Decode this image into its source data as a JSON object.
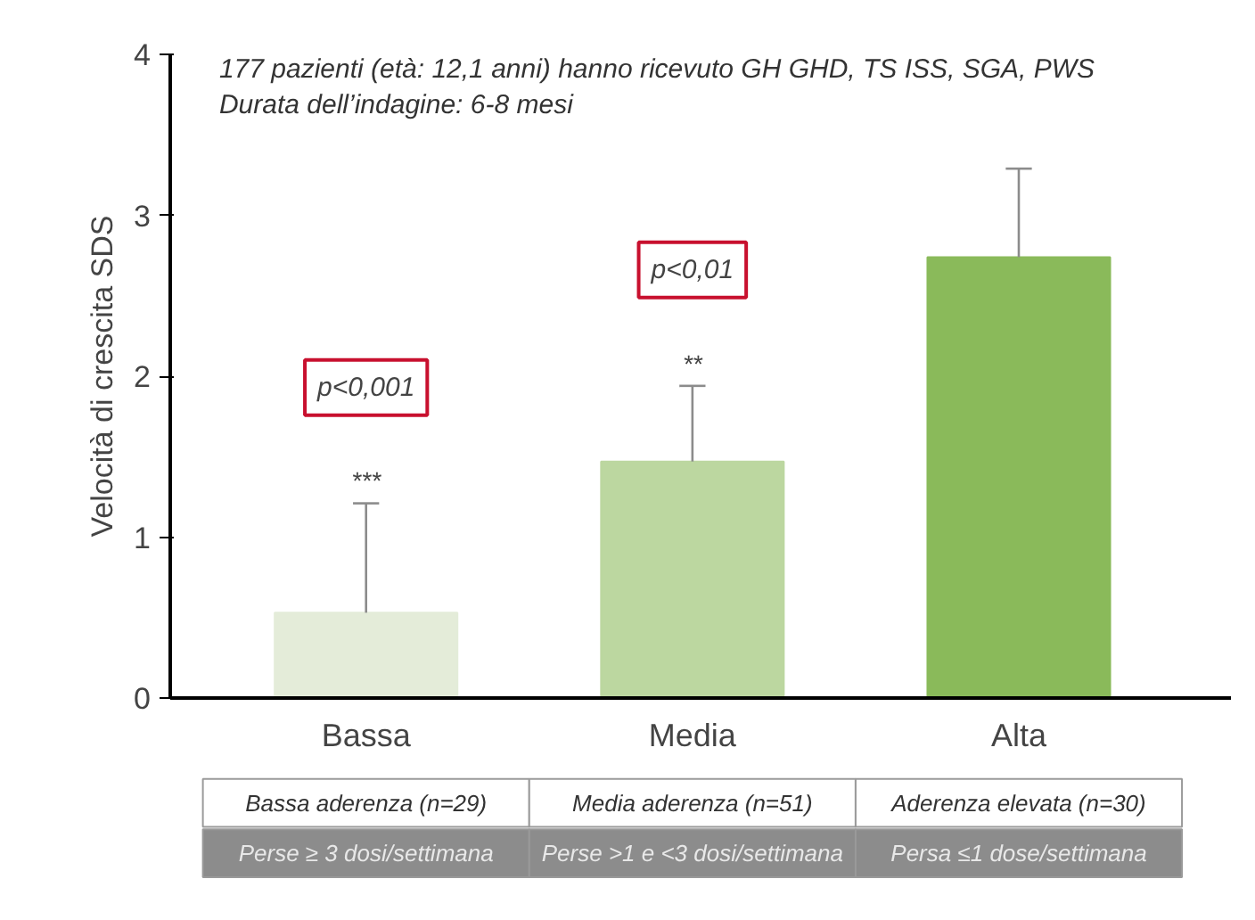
{
  "chart_data": {
    "type": "bar",
    "title": "177 pazienti (età: 12,1 anni) hanno ricevuto GH GHD, TS ISS, SGA, PWS",
    "subtitle": "Durata dell’indagine: 6-8 mesi",
    "ylabel": "Velocità di crescita SDS",
    "categories": [
      "Bassa",
      "Media",
      "Alta"
    ],
    "values": [
      0.53,
      1.47,
      2.74
    ],
    "colors": [
      "#e4ecd9",
      "#bcd7a0",
      "#8aba5a"
    ],
    "errors": [
      [
        0.53,
        1.21
      ],
      [
        1.47,
        1.94
      ],
      [
        2.74,
        3.29
      ]
    ],
    "ylim": [
      0,
      4
    ],
    "yticks": [
      0,
      1,
      2,
      3,
      4
    ],
    "grid": false,
    "annotations": [
      "p<0,001",
      "***",
      "p<0,01",
      "**",
      "Bassa aderenza (n=29)",
      "Media aderenza (n=51)",
      "Aderenza elevata (n=30)",
      "Perse ≥ 3 dosi/settimana",
      "Perse >1 e <3 dosi/settimana",
      "Persa ≤1 dose/settimana"
    ]
  }
}
